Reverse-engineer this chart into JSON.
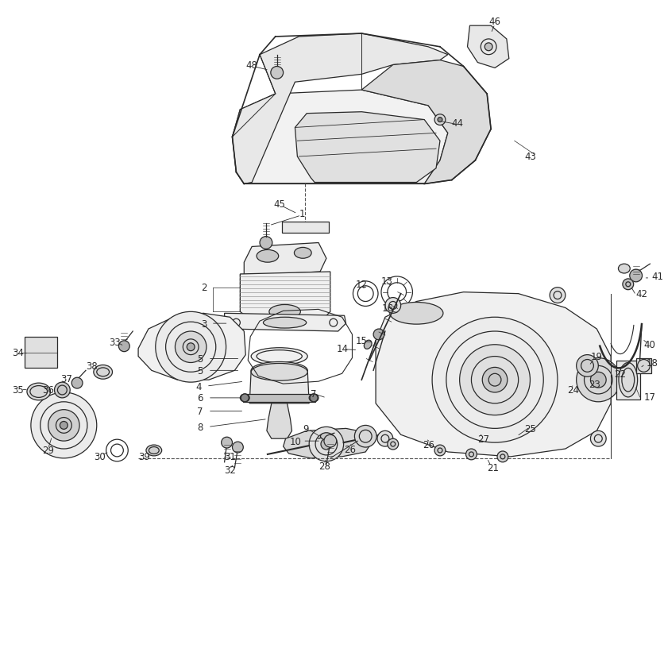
{
  "bg_color": "#ffffff",
  "line_color": "#2a2a2a",
  "figsize": [
    8.36,
    8.37
  ],
  "dpi": 100,
  "lw": 0.9
}
